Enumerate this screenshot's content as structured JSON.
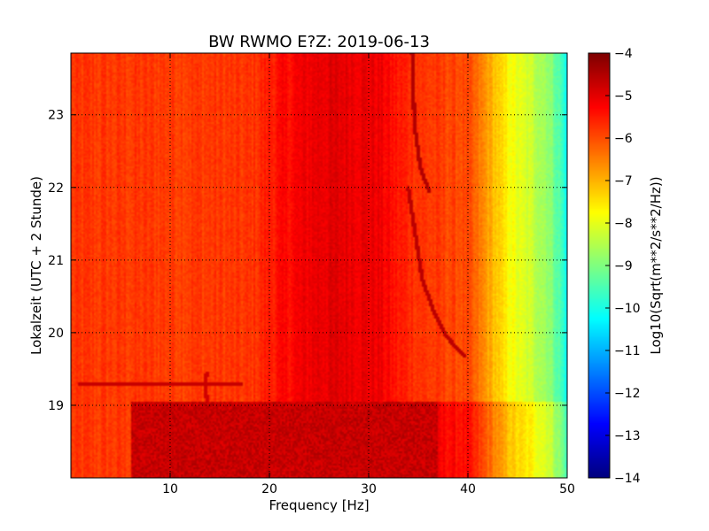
{
  "chart_data": {
    "type": "heatmap",
    "title": "BW RWMO E?Z: 2019-06-13",
    "xlabel": "Frequency [Hz]",
    "ylabel": "Lokalzeit (UTC + 2 Stunde)",
    "xlim": [
      0,
      50
    ],
    "ylim": [
      23.85,
      18.0
    ],
    "x_ticks": [
      10,
      20,
      30,
      40,
      50
    ],
    "y_ticks": [
      19,
      20,
      21,
      22,
      23
    ],
    "x_tick_labels": [
      "10",
      "20",
      "30",
      "40",
      "50"
    ],
    "y_tick_labels": [
      "19",
      "20",
      "21",
      "22",
      "23"
    ],
    "grid": true,
    "colormap": "jet",
    "colorbar": {
      "label": "Log10(Sqrt(m**2/s**2/Hz))",
      "range": [
        -14,
        -4
      ],
      "ticks": [
        -4,
        -5,
        -6,
        -7,
        -8,
        -9,
        -10,
        -11,
        -12,
        -13,
        -14
      ],
      "tick_labels": [
        "−4",
        "−5",
        "−6",
        "−7",
        "−8",
        "−9",
        "−10",
        "−11",
        "−12",
        "−13",
        "−14"
      ]
    },
    "background_profile": {
      "frequency": [
        0,
        18,
        20,
        23,
        25,
        28,
        31,
        33,
        36,
        40,
        42,
        43.5,
        45,
        46.5,
        48,
        49.3,
        50
      ],
      "level": [
        -5.8,
        -5.8,
        -5.5,
        -5.2,
        -5.0,
        -5.0,
        -5.1,
        -5.5,
        -5.8,
        -6.0,
        -6.8,
        -7.5,
        -8.0,
        -8.3,
        -8.7,
        -9.5,
        -10.2
      ]
    },
    "high_noise_period": {
      "time_range": [
        18.0,
        19.05
      ],
      "frequency_range": [
        6,
        37
      ],
      "level": -4.7
    },
    "tracks": [
      {
        "points": [
          [
            39.5,
            19.7
          ],
          [
            37.8,
            19.95
          ],
          [
            36.5,
            20.3
          ],
          [
            35.3,
            20.75
          ],
          [
            34.8,
            21.2
          ],
          [
            34.3,
            21.65
          ],
          [
            33.9,
            22.0
          ]
        ],
        "level": -4.6
      },
      {
        "points": [
          [
            36.0,
            21.95
          ],
          [
            35.1,
            22.3
          ],
          [
            34.6,
            22.8
          ],
          [
            34.4,
            23.3
          ],
          [
            34.3,
            23.85
          ]
        ],
        "level": -4.5
      },
      {
        "points": [
          [
            13.8,
            18.55
          ],
          [
            13.7,
            19.0
          ],
          [
            13.4,
            19.3
          ],
          [
            13.6,
            19.45
          ]
        ],
        "level": -4.8
      },
      {
        "points": [
          [
            0.8,
            19.3
          ],
          [
            17.0,
            19.3
          ]
        ],
        "level": -4.7
      }
    ]
  }
}
